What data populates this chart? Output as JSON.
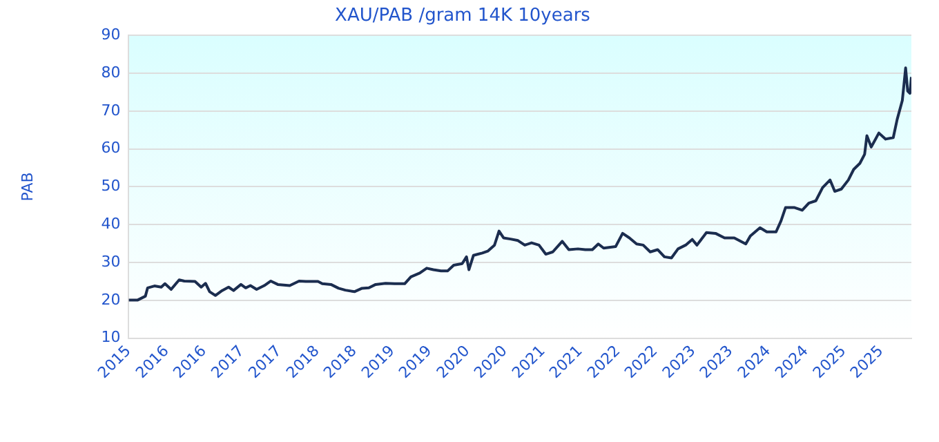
{
  "chart_data": {
    "type": "line",
    "title": "XAU/PAB /gram 14K 10years",
    "ylabel": "PAB",
    "xlim": [
      "2015-07-01",
      "2025-11-25"
    ],
    "xticks": [
      {
        "value": "2015-07-01",
        "label": "2015"
      },
      {
        "value": "2016-01-01",
        "label": "2016"
      },
      {
        "value": "2016-07-01",
        "label": "2016"
      },
      {
        "value": "2017-01-01",
        "label": "2017"
      },
      {
        "value": "2017-07-01",
        "label": "2017"
      },
      {
        "value": "2018-01-01",
        "label": "2018"
      },
      {
        "value": "2018-07-01",
        "label": "2018"
      },
      {
        "value": "2019-01-01",
        "label": "2019"
      },
      {
        "value": "2019-07-01",
        "label": "2019"
      },
      {
        "value": "2020-01-01",
        "label": "2020"
      },
      {
        "value": "2020-07-01",
        "label": "2020"
      },
      {
        "value": "2021-01-01",
        "label": "2021"
      },
      {
        "value": "2021-07-01",
        "label": "2021"
      },
      {
        "value": "2022-01-01",
        "label": "2022"
      },
      {
        "value": "2022-07-01",
        "label": "2022"
      },
      {
        "value": "2023-01-01",
        "label": "2023"
      },
      {
        "value": "2023-07-01",
        "label": "2023"
      },
      {
        "value": "2024-01-01",
        "label": "2024"
      },
      {
        "value": "2024-07-01",
        "label": "2024"
      },
      {
        "value": "2025-01-01",
        "label": "2025"
      },
      {
        "value": "2025-07-01",
        "label": "2025"
      }
    ],
    "ylim": [
      10,
      90
    ],
    "yticks": [
      10,
      20,
      30,
      40,
      50,
      60,
      70,
      80,
      90
    ],
    "grid": "y",
    "legend": false,
    "marker": "none",
    "line_style": "solid",
    "series": [
      {
        "color": "#1b2d4f",
        "x": [
          "2015-07-01",
          "2015-08-14",
          "2015-09-20",
          "2015-10-01",
          "2015-11-03",
          "2015-12-06",
          "2015-12-24",
          "2016-01-23",
          "2016-03-02",
          "2016-03-27",
          "2016-05-18",
          "2016-06-17",
          "2016-07-08",
          "2016-07-28",
          "2016-08-25",
          "2016-09-27",
          "2016-10-28",
          "2016-11-21",
          "2016-12-27",
          "2017-01-19",
          "2017-02-11",
          "2017-03-13",
          "2017-04-19",
          "2017-05-21",
          "2017-06-24",
          "2017-08-21",
          "2017-10-05",
          "2017-11-07",
          "2018-01-05",
          "2018-01-26",
          "2018-03-09",
          "2018-04-15",
          "2018-05-18",
          "2018-07-01",
          "2018-08-07",
          "2018-09-09",
          "2018-10-12",
          "2018-11-29",
          "2019-01-12",
          "2019-03-02",
          "2019-04-01",
          "2019-05-14",
          "2019-06-17",
          "2019-07-19",
          "2019-08-25",
          "2019-09-27",
          "2019-10-26",
          "2019-12-06",
          "2019-12-27",
          "2020-01-08",
          "2020-01-30",
          "2020-02-21",
          "2020-03-13",
          "2020-04-08",
          "2020-05-11",
          "2020-06-02",
          "2020-06-24",
          "2020-07-28",
          "2020-09-02",
          "2020-10-05",
          "2020-11-07",
          "2020-12-13",
          "2021-01-15",
          "2021-02-18",
          "2021-04-05",
          "2021-05-07",
          "2021-06-20",
          "2021-07-26",
          "2021-08-29",
          "2021-09-27",
          "2021-10-23",
          "2021-12-20",
          "2022-01-23",
          "2022-02-25",
          "2022-04-01",
          "2022-05-03",
          "2022-06-06",
          "2022-07-12",
          "2022-08-14",
          "2022-09-17",
          "2022-10-19",
          "2022-11-25",
          "2022-12-27",
          "2023-01-19",
          "2023-03-06",
          "2023-04-19",
          "2023-06-02",
          "2023-07-19",
          "2023-09-13",
          "2023-10-05",
          "2023-11-21",
          "2023-12-24",
          "2024-02-07",
          "2024-03-02",
          "2024-03-24",
          "2024-05-07",
          "2024-06-13",
          "2024-07-15",
          "2024-08-18",
          "2024-09-20",
          "2024-10-26",
          "2024-11-18",
          "2024-12-20",
          "2025-01-23",
          "2025-02-18",
          "2025-03-20",
          "2025-04-12",
          "2025-04-23",
          "2025-05-14",
          "2025-06-20",
          "2025-07-23",
          "2025-08-29",
          "2025-09-17",
          "2025-10-12",
          "2025-10-19",
          "2025-10-28",
          "2025-11-07",
          "2025-11-18",
          "2025-11-25"
        ],
        "values": [
          20.1,
          20.1,
          21.1,
          23.3,
          23.8,
          23.5,
          24.4,
          22.9,
          25.4,
          25.1,
          25.0,
          23.5,
          24.5,
          22.3,
          21.3,
          22.6,
          23.5,
          22.6,
          24.2,
          23.3,
          23.9,
          22.9,
          23.9,
          25.1,
          24.2,
          23.9,
          25.1,
          25.0,
          25.0,
          24.4,
          24.2,
          23.2,
          22.7,
          22.3,
          23.2,
          23.3,
          24.2,
          24.5,
          24.4,
          24.4,
          26.2,
          27.2,
          28.5,
          28.1,
          27.8,
          27.8,
          29.3,
          29.7,
          31.5,
          28.1,
          31.9,
          32.2,
          32.5,
          33.0,
          34.6,
          38.3,
          36.5,
          36.2,
          35.8,
          34.6,
          35.2,
          34.6,
          32.2,
          32.8,
          35.6,
          33.4,
          33.6,
          33.4,
          33.4,
          34.9,
          33.8,
          34.2,
          37.7,
          36.5,
          34.9,
          34.6,
          32.8,
          33.4,
          31.5,
          31.2,
          33.6,
          34.6,
          36.1,
          34.6,
          37.9,
          37.7,
          36.5,
          36.5,
          34.9,
          37.0,
          39.2,
          38.1,
          38.1,
          41.0,
          44.5,
          44.5,
          43.8,
          45.7,
          46.3,
          49.8,
          51.8,
          48.8,
          49.4,
          51.8,
          54.6,
          56.2,
          58.6,
          63.5,
          60.5,
          64.2,
          62.6,
          63.0,
          67.8,
          72.8,
          76.5,
          81.4,
          75.3,
          74.7,
          79.0
        ]
      }
    ]
  }
}
